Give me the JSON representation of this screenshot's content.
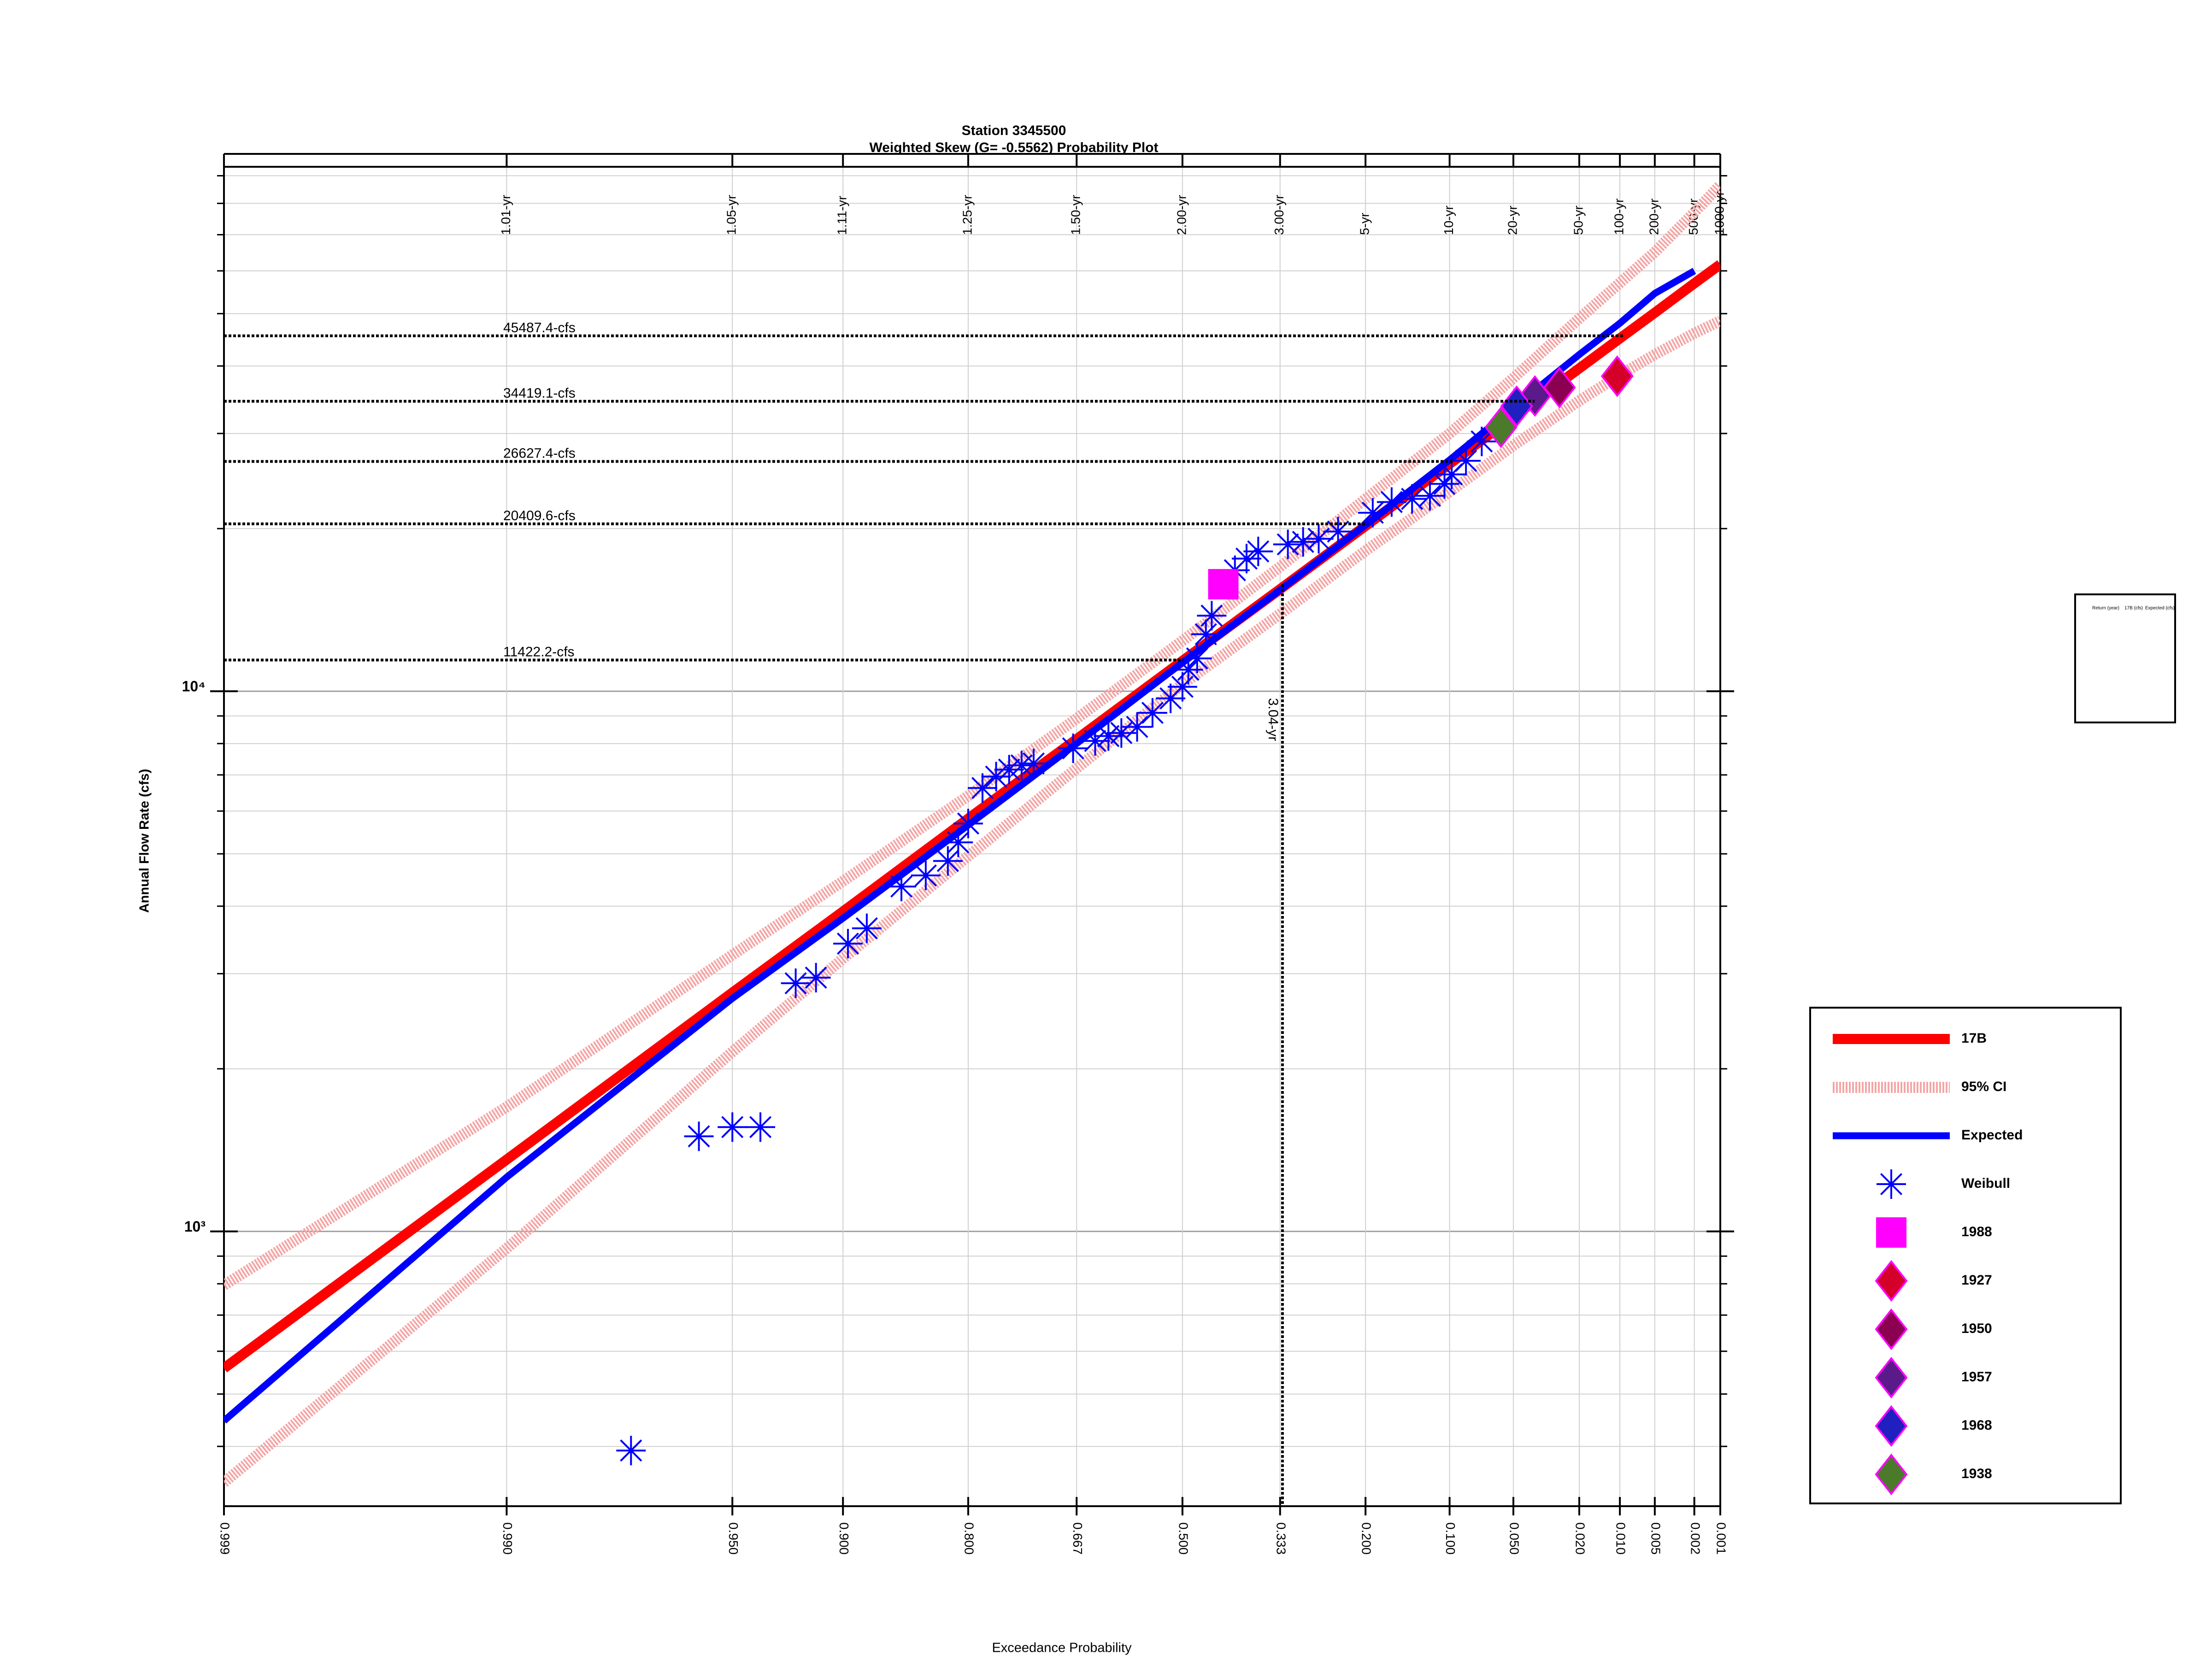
{
  "chart_data": {
    "type": "probability",
    "title": "Station 3345500",
    "subtitle": "Weighted Skew (G= -0.5562) Probability Plot",
    "xlabel": "Exceedance Probability",
    "ylabel": "Annual Flow Rate (cfs)",
    "x_scale": "pearson3",
    "skew": -0.5562,
    "log_y": true,
    "grid": true,
    "legend": "right",
    "xlim": [
      0.999,
      0.001
    ],
    "xticks": [
      0.999,
      {
        "value": 0.99,
        "label": "0.990"
      },
      {
        "value": 0.95,
        "label": "0.950"
      },
      {
        "value": 0.9,
        "label": "0.900"
      },
      {
        "value": 0.8,
        "label": "0.800"
      },
      0.667,
      {
        "value": 0.5,
        "label": "0.500"
      },
      0.333,
      {
        "value": 0.2,
        "label": "0.200"
      },
      {
        "value": 0.1,
        "label": "0.100"
      },
      {
        "value": 0.05,
        "label": "0.050"
      },
      {
        "value": 0.02,
        "label": "0.020"
      },
      {
        "value": 0.01,
        "label": "0.010"
      },
      0.005,
      0.002,
      0.001
    ],
    "x2ticks": [
      {
        "value": 0.99,
        "label": "1.01-yr"
      },
      {
        "value": 0.95,
        "label": "1.05-yr"
      },
      {
        "value": 0.9,
        "label": "1.11-yr"
      },
      {
        "value": 0.8,
        "label": "1.25-yr"
      },
      {
        "value": 0.667,
        "label": "1.50-yr"
      },
      {
        "value": 0.5,
        "label": "2.00-yr"
      },
      {
        "value": 0.333,
        "label": "3.00-yr"
      },
      {
        "value": 0.2,
        "label": "5-yr"
      },
      {
        "value": 0.1,
        "label": "10-yr"
      },
      {
        "value": 0.05,
        "label": "20-yr"
      },
      {
        "value": 0.02,
        "label": "50-yr"
      },
      {
        "value": 0.01,
        "label": "100-yr"
      },
      {
        "value": 0.005,
        "label": "200-yr"
      },
      {
        "value": 0.002,
        "label": "500-yr"
      },
      {
        "value": 0.001,
        "label": "1000-yr"
      }
    ],
    "ylim": [
      310,
      93500
    ],
    "yticks": [
      {
        "value": 1000,
        "label": "10³"
      },
      {
        "value": 10000,
        "label": "10⁴"
      }
    ],
    "yminorticks": [
      400,
      500,
      600,
      700,
      800,
      900,
      2000,
      3000,
      4000,
      5000,
      6000,
      7000,
      8000,
      9000,
      20000,
      30000,
      40000,
      50000,
      60000,
      70000,
      80000,
      90000
    ],
    "x": [
      0.999,
      0.99,
      0.95,
      0.9,
      0.8,
      0.667,
      0.5,
      0.333,
      0.2,
      0.1,
      0.05,
      0.02,
      0.01,
      0.005,
      0.002,
      0.001
    ],
    "series": [
      {
        "name": "17B",
        "color": "#ff0000",
        "style": "line",
        "values": [
          558,
          1358,
          2767,
          3910,
          5810,
          8150,
          11380,
          15450,
          20230,
          26360,
          32200,
          39600,
          45000,
          50200,
          56900,
          61700
        ]
      },
      {
        "name": "95% CI",
        "color": "#f4a6a6",
        "style": "band",
        "upper": [
          795,
          1700,
          3250,
          4450,
          6400,
          8900,
          12400,
          17000,
          22700,
          30000,
          38000,
          49000,
          57000,
          65000,
          77000,
          86500
        ],
        "lower": [
          343,
          930,
          2150,
          3200,
          4950,
          7200,
          10300,
          13900,
          18200,
          23400,
          28500,
          34500,
          38500,
          42000,
          46000,
          48500
        ]
      },
      {
        "name": "Expected",
        "color": "#0000ff",
        "style": "line",
        "values": [
          446,
          1260,
          2700,
          3800,
          5650,
          8000,
          11300,
          15400,
          20300,
          26800,
          33500,
          42000,
          48000,
          54500,
          60000,
          null
        ]
      },
      {
        "name": "Weibull",
        "color": "#0000ff",
        "style": "points",
        "marker": "asterisk",
        "x": [
          0.975,
          0.96,
          0.95,
          0.94,
          0.925,
          0.915,
          0.897,
          0.885,
          0.86,
          0.84,
          0.82,
          0.81,
          0.8,
          0.785,
          0.77,
          0.755,
          0.74,
          0.725,
          0.672,
          0.64,
          0.62,
          0.6,
          0.575,
          0.55,
          0.52,
          0.5,
          0.49,
          0.475,
          0.46,
          0.45,
          0.41,
          0.39,
          0.37,
          0.32,
          0.295,
          0.27,
          0.24,
          0.19,
          0.165,
          0.14,
          0.12,
          0.105,
          0.098,
          0.085,
          0.072
        ],
        "values": [
          393,
          1500,
          1560,
          1560,
          2880,
          2950,
          3410,
          3640,
          4350,
          4560,
          4850,
          5250,
          5690,
          6620,
          6950,
          7160,
          7290,
          7350,
          7840,
          8090,
          8260,
          8370,
          8590,
          9120,
          9700,
          10190,
          10960,
          11500,
          12750,
          13800,
          16750,
          17600,
          18150,
          18700,
          18900,
          19150,
          19750,
          21400,
          22400,
          22700,
          23000,
          24200,
          25200,
          26700,
          29000
        ]
      },
      {
        "name": "1988",
        "color": "#ff00ff",
        "style": "points",
        "marker": "square",
        "x": [
          0.43
        ],
        "values": [
          15780
        ]
      },
      {
        "name": "1927",
        "color": "#d4002a",
        "edge": "#ff00ff",
        "style": "points",
        "marker": "diamond",
        "x": [
          0.0105
        ],
        "values": [
          38300
        ]
      },
      {
        "name": "1950",
        "color": "#8b0050",
        "edge": "#ff00ff",
        "style": "points",
        "marker": "diamond",
        "x": [
          0.027
        ],
        "values": [
          36500
        ]
      },
      {
        "name": "1957",
        "color": "#5a1a8a",
        "edge": "#ff00ff",
        "style": "points",
        "marker": "diamond",
        "x": [
          0.038
        ],
        "values": [
          35200
        ]
      },
      {
        "name": "1968",
        "color": "#2020c0",
        "edge": "#ff00ff",
        "style": "points",
        "marker": "diamond",
        "x": [
          0.048
        ],
        "values": [
          33700
        ]
      },
      {
        "name": "1938",
        "color": "#4a7a2a",
        "edge": "#ff00ff",
        "style": "points",
        "marker": "diamond",
        "x": [
          0.058
        ],
        "values": [
          30800
        ]
      }
    ],
    "hlines": [
      {
        "value": 45487.4,
        "label": "45487.4-cfs"
      },
      {
        "value": 34419.1,
        "label": "34419.1-cfs"
      },
      {
        "value": 26627.4,
        "label": "26627.4-cfs"
      },
      {
        "value": 20409.6,
        "label": "20409.6-cfs"
      },
      {
        "value": 11422.2,
        "label": "11422.2-cfs"
      }
    ],
    "vline": {
      "x": 0.329,
      "value": 15780,
      "label": "3.04-yr"
    }
  },
  "inset_table": {
    "headers": [
      "Return (year)",
      "17B (cfs)",
      "Expected (cfs)"
    ]
  }
}
